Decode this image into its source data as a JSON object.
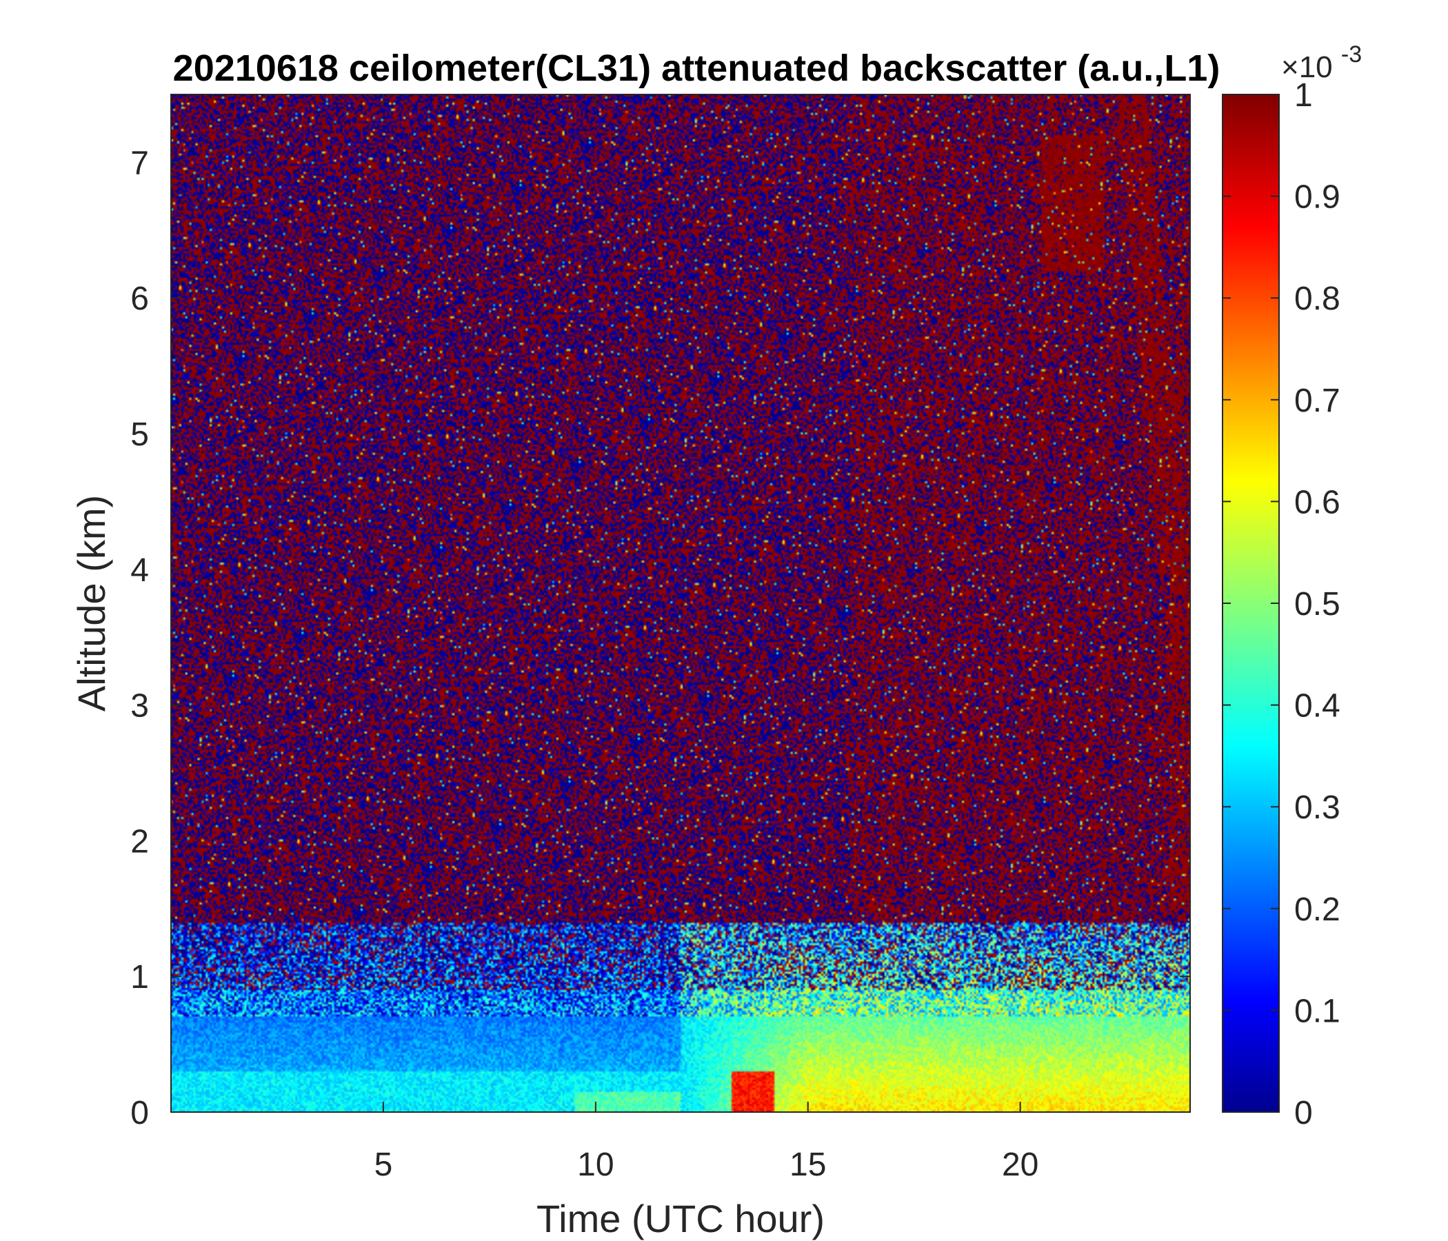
{
  "chart_data": {
    "type": "heatmap",
    "title": "20210618 ceilometer(CL31) attenuated backscatter (a.u.,L1)",
    "xlabel": "Time (UTC hour)",
    "ylabel": "Altitude (km)",
    "xlim": [
      0,
      24
    ],
    "ylim": [
      0,
      7.5
    ],
    "xticks": [
      "5",
      "10",
      "15",
      "20"
    ],
    "yticks": [
      "0",
      "1",
      "2",
      "3",
      "4",
      "5",
      "6",
      "7"
    ],
    "colorbar": {
      "colormap": "jet",
      "range": [
        0,
        1
      ],
      "ticks": [
        "0",
        "0.1",
        "0.2",
        "0.3",
        "0.4",
        "0.5",
        "0.6",
        "0.7",
        "0.8",
        "0.9",
        "1"
      ],
      "multiplier_base": "×10",
      "multiplier_exp": "-3"
    },
    "colors": {
      "noise_blue": "#00008f",
      "noise_red": "#800000",
      "boundary_layer_cyan": "#3cb4ff",
      "afternoon_yellow": "#d2e632"
    }
  }
}
